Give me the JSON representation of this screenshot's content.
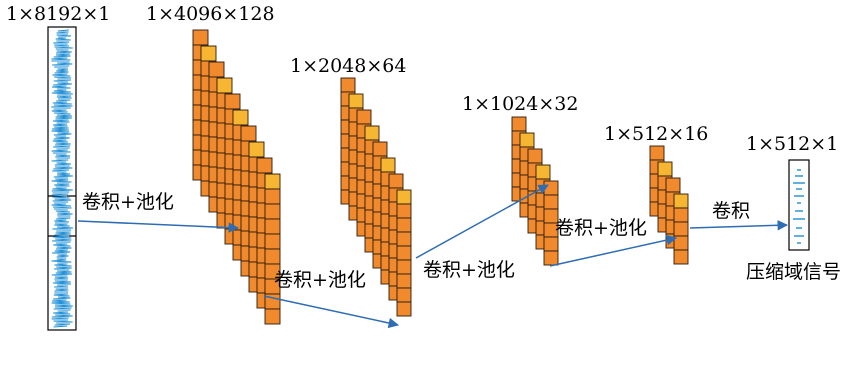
{
  "layers": [
    {
      "dim_label": "1×8192×1",
      "kind": "input"
    },
    {
      "dim_label": "1×4096×128",
      "kind": "feature",
      "blocks": 10
    },
    {
      "dim_label": "1×2048×64",
      "kind": "feature",
      "blocks": 8
    },
    {
      "dim_label": "1×1024×32",
      "kind": "feature",
      "blocks": 5
    },
    {
      "dim_label": "1×512×16",
      "kind": "feature",
      "blocks": 4
    },
    {
      "dim_label": "1×512×1",
      "kind": "output"
    }
  ],
  "operations": [
    "卷积+池化",
    "卷积+池化",
    "卷积+池化",
    "卷积+池化",
    "卷积"
  ],
  "output_label": "压缩域信号",
  "colors": {
    "block_fill": "#F08A2C",
    "block_fill_alt": "#F7B631",
    "block_stroke": "#2a1a10",
    "arrow": "#2E6DB4",
    "signal": "#1F8FD6",
    "box_stroke": "#000000"
  }
}
